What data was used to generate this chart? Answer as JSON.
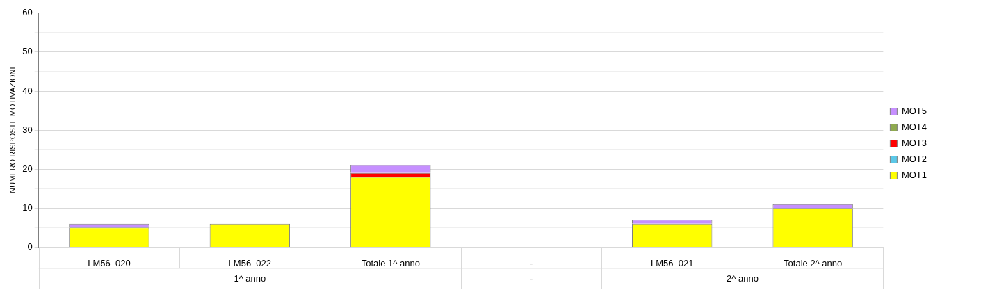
{
  "chart_data": {
    "type": "bar",
    "ylabel": "NUMERO RISPOSTE MOTIVAZIONI",
    "categories": [
      "LM56_020",
      "LM56_022",
      "Totale 1^ anno",
      "-",
      "LM56_021",
      "Totale 2^ anno"
    ],
    "series": [
      {
        "name": "MOT1",
        "color": "#ffff00",
        "values": [
          5,
          6,
          18,
          null,
          6,
          10
        ]
      },
      {
        "name": "MOT2",
        "color": "#5bc8e8",
        "values": [
          0,
          0,
          0,
          null,
          0,
          0
        ]
      },
      {
        "name": "MOT3",
        "color": "#ff0000",
        "values": [
          0,
          0,
          1,
          null,
          0,
          0
        ]
      },
      {
        "name": "MOT4",
        "color": "#8faa50",
        "values": [
          0,
          0,
          0,
          null,
          0,
          0
        ]
      },
      {
        "name": "MOT5",
        "color": "#c690ff",
        "values": [
          1,
          0,
          2,
          null,
          1,
          1
        ]
      }
    ],
    "stacked": true,
    "ylim": [
      0,
      60
    ],
    "yticks": [
      0,
      {
        "value": 5,
        "label": null
      },
      10,
      {
        "value": 15,
        "label": null
      },
      20,
      {
        "value": 25,
        "label": null
      },
      30,
      {
        "value": 35,
        "label": null
      },
      40,
      {
        "value": 45,
        "label": null
      },
      50,
      {
        "value": 55,
        "label": null
      },
      60
    ],
    "grid": "y",
    "legend": "right",
    "annotations": [
      "1^ anno",
      "-",
      "2^ anno"
    ]
  }
}
